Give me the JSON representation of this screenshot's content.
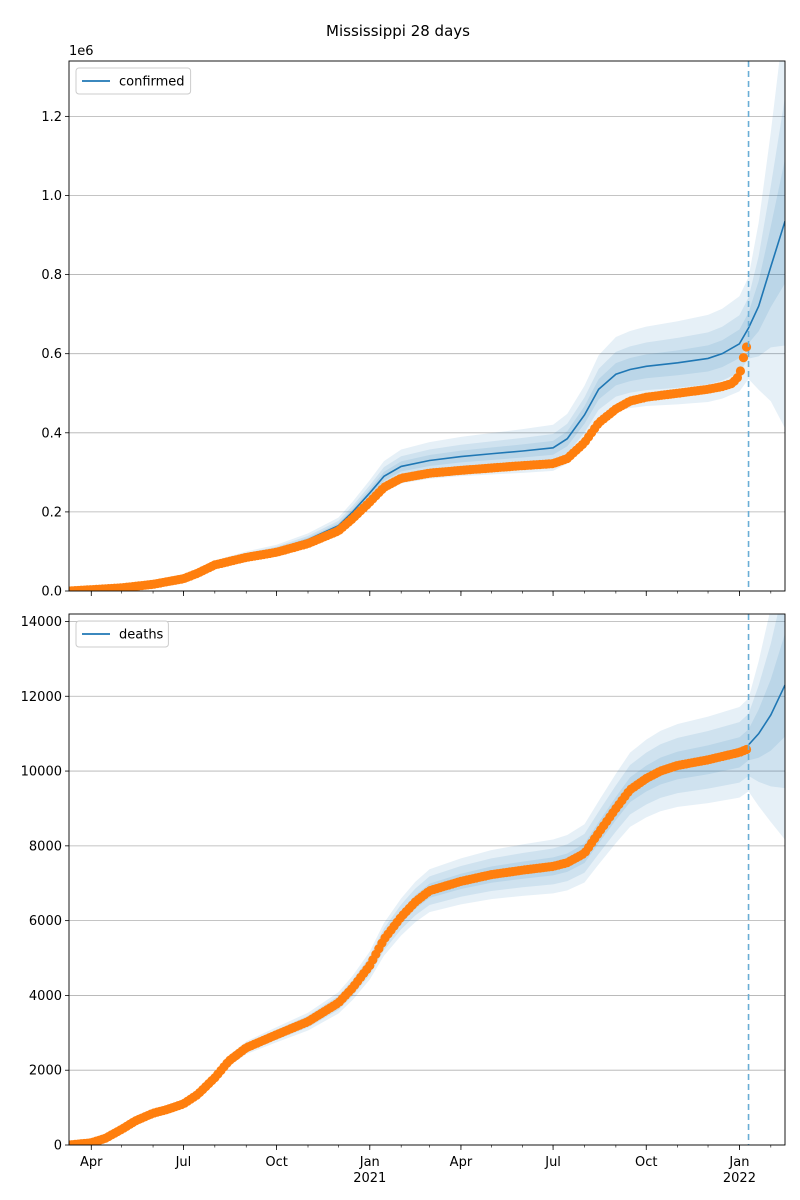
{
  "figure": {
    "title": "Mississippi 28 days"
  },
  "chart_data": [
    {
      "type": "line",
      "panel": "top",
      "exponent_label": "1e6",
      "xlim": [
        "2020-03-10",
        "2022-02-15"
      ],
      "ylim": [
        0,
        1340000
      ],
      "yticks": [
        0,
        200000,
        400000,
        600000,
        800000,
        1000000,
        1200000
      ],
      "ytick_labels": [
        "0.0",
        "0.2",
        "0.4",
        "0.6",
        "0.8",
        "1.0",
        "1.2"
      ],
      "grid": "y",
      "legend": {
        "position": "top-left",
        "entries": [
          "confirmed"
        ]
      },
      "forecast_start": "2022-01-10",
      "series": [
        {
          "name": "confirmed",
          "style": "line",
          "color": "#1f77b4",
          "x": [
            "2020-03-10",
            "2020-05-01",
            "2020-06-01",
            "2020-07-01",
            "2020-07-15",
            "2020-08-01",
            "2020-09-01",
            "2020-10-01",
            "2020-11-01",
            "2020-12-01",
            "2020-12-15",
            "2021-01-01",
            "2021-01-15",
            "2021-02-01",
            "2021-03-01",
            "2021-04-01",
            "2021-05-01",
            "2021-06-01",
            "2021-07-01",
            "2021-07-15",
            "2021-08-01",
            "2021-08-15",
            "2021-09-01",
            "2021-09-15",
            "2021-10-01",
            "2021-11-01",
            "2021-12-01",
            "2021-12-15",
            "2022-01-01",
            "2022-01-10",
            "2022-01-20",
            "2022-02-01",
            "2022-02-15"
          ],
          "y": [
            0,
            8000,
            17000,
            33000,
            48000,
            70000,
            90000,
            105000,
            130000,
            165000,
            200000,
            248000,
            290000,
            315000,
            330000,
            340000,
            347000,
            354000,
            362000,
            385000,
            445000,
            510000,
            548000,
            560000,
            568000,
            577000,
            588000,
            600000,
            625000,
            665000,
            720000,
            820000,
            935000
          ]
        },
        {
          "name": "",
          "style": "markers",
          "color": "#ff7f0e",
          "x": [
            "2020-03-10",
            "2020-05-01",
            "2020-06-01",
            "2020-07-01",
            "2020-07-15",
            "2020-08-01",
            "2020-09-01",
            "2020-10-01",
            "2020-11-01",
            "2020-12-01",
            "2020-12-15",
            "2021-01-01",
            "2021-01-15",
            "2021-02-01",
            "2021-03-01",
            "2021-04-01",
            "2021-05-01",
            "2021-06-01",
            "2021-07-01",
            "2021-07-15",
            "2021-08-01",
            "2021-08-15",
            "2021-09-01",
            "2021-09-15",
            "2021-10-01",
            "2021-11-01",
            "2021-12-01",
            "2021-12-15",
            "2021-12-25",
            "2022-01-01",
            "2022-01-05",
            "2022-01-10"
          ],
          "y": [
            0,
            8000,
            17000,
            31000,
            45000,
            66000,
            85000,
            98000,
            120000,
            152000,
            183000,
            225000,
            262000,
            285000,
            298000,
            305000,
            311000,
            317000,
            322000,
            335000,
            375000,
            425000,
            460000,
            480000,
            490000,
            500000,
            510000,
            517000,
            525000,
            545000,
            590000,
            635000
          ]
        }
      ]
    },
    {
      "type": "line",
      "panel": "bottom",
      "xlim": [
        "2020-03-10",
        "2022-02-15"
      ],
      "ylim": [
        0,
        14200
      ],
      "yticks": [
        0,
        2000,
        4000,
        6000,
        8000,
        10000,
        12000,
        14000
      ],
      "ytick_labels": [
        "0",
        "2000",
        "4000",
        "6000",
        "8000",
        "10000",
        "12000",
        "14000"
      ],
      "grid": "y",
      "legend": {
        "position": "top-left",
        "entries": [
          "deaths"
        ]
      },
      "forecast_start": "2022-01-10",
      "xticks": [
        {
          "date": "2020-04-01",
          "label": "Apr",
          "sub": ""
        },
        {
          "date": "2020-07-01",
          "label": "Jul",
          "sub": ""
        },
        {
          "date": "2020-10-01",
          "label": "Oct",
          "sub": ""
        },
        {
          "date": "2021-01-01",
          "label": "Jan",
          "sub": "2021"
        },
        {
          "date": "2021-04-01",
          "label": "Apr",
          "sub": ""
        },
        {
          "date": "2021-07-01",
          "label": "Jul",
          "sub": ""
        },
        {
          "date": "2021-10-01",
          "label": "Oct",
          "sub": ""
        },
        {
          "date": "2022-01-01",
          "label": "Jan",
          "sub": "2022"
        }
      ],
      "series": [
        {
          "name": "deaths",
          "style": "line",
          "color": "#1f77b4",
          "x": [
            "2022-01-10",
            "2022-01-20",
            "2022-02-01",
            "2022-02-15"
          ],
          "y": [
            10700,
            11000,
            11500,
            12300
          ]
        },
        {
          "name": "",
          "style": "markers",
          "color": "#ff7f0e",
          "x": [
            "2020-03-10",
            "2020-04-01",
            "2020-04-15",
            "2020-05-01",
            "2020-05-15",
            "2020-06-01",
            "2020-06-15",
            "2020-07-01",
            "2020-07-15",
            "2020-08-01",
            "2020-08-15",
            "2020-09-01",
            "2020-10-01",
            "2020-11-01",
            "2020-12-01",
            "2020-12-15",
            "2021-01-01",
            "2021-01-15",
            "2021-02-01",
            "2021-02-15",
            "2021-03-01",
            "2021-04-01",
            "2021-05-01",
            "2021-06-01",
            "2021-07-01",
            "2021-07-15",
            "2021-08-01",
            "2021-08-15",
            "2021-09-01",
            "2021-09-15",
            "2021-10-01",
            "2021-10-15",
            "2021-11-01",
            "2021-12-01",
            "2022-01-01",
            "2022-01-10"
          ],
          "y": [
            0,
            60,
            180,
            420,
            650,
            850,
            950,
            1100,
            1350,
            1800,
            2250,
            2600,
            2950,
            3300,
            3800,
            4200,
            4800,
            5500,
            6100,
            6500,
            6800,
            7050,
            7230,
            7350,
            7450,
            7550,
            7800,
            8350,
            9000,
            9500,
            9800,
            10000,
            10150,
            10300,
            10500,
            10600
          ]
        }
      ]
    }
  ]
}
